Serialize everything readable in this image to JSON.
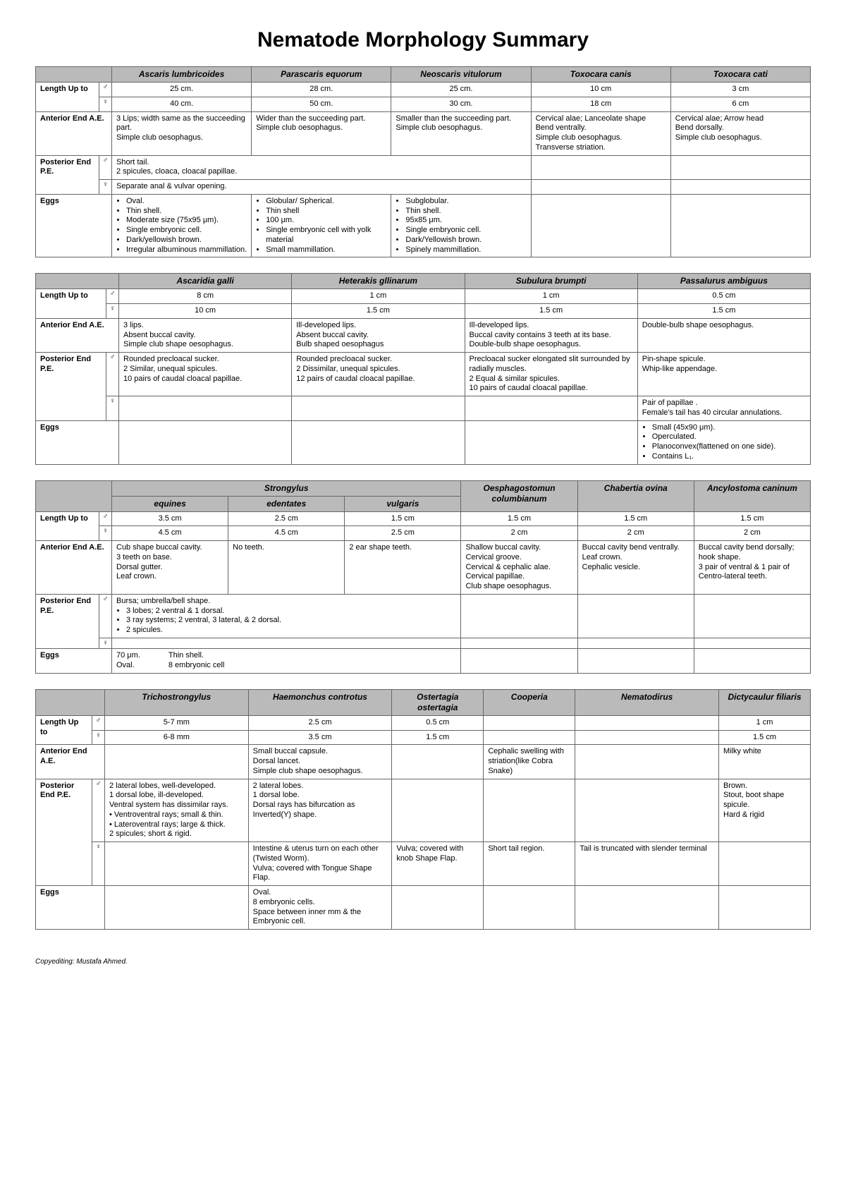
{
  "title": "Nematode Morphology Summary",
  "footer": "Copyediting: Mustafa Ahmed.",
  "symbols": {
    "male": "♂",
    "female": "♀"
  },
  "row_labels": {
    "length": "Length Up to",
    "ae": "Anterior End A.E.",
    "pe": "Posterior End P.E.",
    "eggs": "Eggs"
  },
  "table1": {
    "species": [
      "Ascaris lumbricoides",
      "Parascaris equorum",
      "Neoscaris vitulorum",
      "Toxocara canis",
      "Toxocara cati"
    ],
    "length_m": [
      "25 cm.",
      "28 cm.",
      "25 cm.",
      "10 cm",
      "3 cm"
    ],
    "length_f": [
      "40 cm.",
      "50 cm.",
      "30 cm.",
      "18 cm",
      "6 cm"
    ],
    "ae": [
      "3 Lips; width same as the succeeding part.\nSimple club oesophagus.",
      "Wider than the succeeding part.\nSimple club oesophagus.",
      "Smaller than the succeeding part.\nSimple club oesophagus.",
      "Cervical alae; Lanceolate shape\nBend ventrally.\nSimple club oesophagus.\nTransverse striation.",
      "Cervical alae; Arrow head\nBend dorsally.\nSimple club oesophagus."
    ],
    "pe_m": "Short tail.\n2 spicules, cloaca, cloacal papillae.",
    "pe_f": "Separate anal & vulvar opening.",
    "eggs": [
      [
        "Oval.",
        "Thin shell.",
        "Moderate size (75x95 μm).",
        "Single embryonic cell.",
        "Dark/yellowish brown.",
        "Irregular albuminous mammillation."
      ],
      [
        "Globular/ Spherical.",
        "Thin shell",
        "100 μm.",
        "Single embryonic cell with yolk material",
        "Small mammillation."
      ],
      [
        "Subglobular.",
        "Thin shell.",
        "95x85 μm.",
        "Single embryonic cell.",
        "Dark/Yellowish brown.",
        "Spinely mammillation."
      ]
    ]
  },
  "table2": {
    "species": [
      "Ascaridia galli",
      "Heterakis gllinarum",
      "Subulura brumpti",
      "Passalurus ambiguus"
    ],
    "length_m": [
      "8 cm",
      "1 cm",
      "1 cm",
      "0.5 cm"
    ],
    "length_f": [
      "10 cm",
      "1.5 cm",
      "1.5 cm",
      "1.5 cm"
    ],
    "ae": [
      "3 lips.\nAbsent buccal cavity.\nSimple club shape oesophagus.",
      "Ill-developed lips.\nAbsent buccal cavity.\nBulb shaped oesophagus",
      "Ill-developed lips.\nBuccal cavity contains 3 teeth at its base.\nDouble-bulb shape oesophagus.",
      "Double-bulb shape oesophagus."
    ],
    "pe_m": [
      "Rounded precloacal sucker.\n2 Similar, unequal spicules.\n10 pairs of caudal cloacal papillae.",
      "Rounded precloacal sucker.\n2 Dissimilar, unequal spicules.\n12 pairs of caudal cloacal papillae.",
      "Precloacal sucker elongated slit surrounded by radially muscles.\n2 Equal & similar spicules.\n10 pairs of caudal cloacal papillae.",
      "Pin-shape spicule.\nWhip-like appendage."
    ],
    "pe_f4": "Pair of papillae .\nFemale's tail has 40 circular annulations.",
    "eggs4": [
      "Small (45x90 μm).",
      "Operculated.",
      "Planoconvex(flattened on one side).",
      "Contains L₁."
    ]
  },
  "table3": {
    "group_header": "Strongylus",
    "sub_species": [
      "equines",
      "edentates",
      "vulgaris"
    ],
    "species_right": [
      "Oesphagostomun columbianum",
      "Chabertia ovina",
      "Ancylostoma caninum"
    ],
    "length_m": [
      "3.5 cm",
      "2.5 cm",
      "1.5 cm",
      "1.5 cm",
      "1.5 cm",
      "1.5 cm"
    ],
    "length_f": [
      "4.5 cm",
      "4.5 cm",
      "2.5 cm",
      "2 cm",
      "2 cm",
      "2 cm"
    ],
    "ae": [
      "Cub shape buccal cavity.\n3 teeth on base.\nDorsal gutter.\nLeaf crown.",
      "No teeth.",
      "2 ear shape teeth.",
      "Shallow buccal cavity.\nCervical groove.\nCervical & cephalic alae.\nCervical papillae.\nClub shape oesophagus.",
      "Buccal cavity bend ventrally.\nLeaf crown.\nCephalic vesicle.",
      "Buccal cavity bend dorsally; hook shape.\n3 pair of ventral & 1 pair of Centro-lateral teeth."
    ],
    "pe_m_text": "Bursa; umbrella/bell shape.",
    "pe_m_list": [
      "3 lobes; 2 ventral & 1 dorsal.",
      "3 ray systems; 2 ventral, 3 lateral, & 2 dorsal.",
      "2 spicules."
    ],
    "eggs_left": "70 μm.\nOval.",
    "eggs_right": "Thin shell.\n8 embryonic cell"
  },
  "table4": {
    "species": [
      "Trichostrongylus",
      "Haemonchus controtus",
      "Ostertagia ostertagia",
      "Cooperia",
      "Nematodirus",
      "Dictycaulur filiaris"
    ],
    "length_m": [
      "5-7 mm",
      "2.5 cm",
      "0.5 cm",
      "",
      "",
      "1 cm"
    ],
    "length_f": [
      "6-8 mm",
      "3.5 cm",
      "1.5 cm",
      "",
      "",
      "1.5 cm"
    ],
    "ae": [
      "",
      "Small buccal capsule.\nDorsal lancet.\nSimple club shape oesophagus.",
      "",
      "Cephalic swelling with striation(like Cobra Snake)",
      "",
      "Milky white"
    ],
    "pe_m": [
      "2 lateral lobes, well-developed.\n1 dorsal lobe, ill-developed.\nVentral system has dissimilar rays.\n• Ventroventral rays; small & thin.\n• Lateroventral rays; large & thick.\n2 spicules; short & rigid.",
      "2 lateral lobes.\n1 dorsal lobe.\nDorsal rays has bifurcation as Inverted(Y) shape.",
      "",
      "",
      "",
      "Brown.\nStout, boot shape spicule.\nHard & rigid"
    ],
    "pe_f": [
      "",
      "Intestine & uterus turn on each other (Twisted Worm).\nVulva; covered with Tongue Shape Flap.",
      "Vulva; covered with knob Shape Flap.",
      "Short tail region.",
      "Tail is truncated with slender terminal",
      ""
    ],
    "eggs": [
      "",
      "Oval.\n8 embryonic cells.\nSpace between inner mm & the Embryonic cell.",
      "",
      "",
      "",
      ""
    ]
  }
}
